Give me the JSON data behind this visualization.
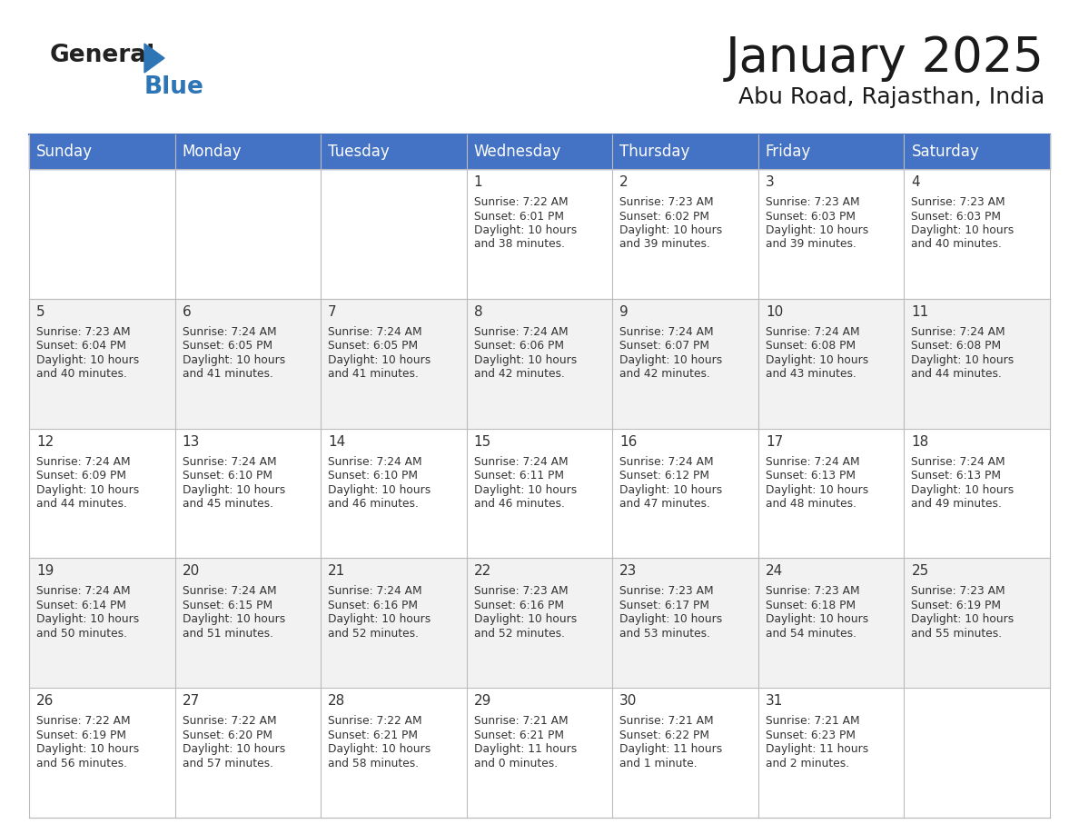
{
  "title": "January 2025",
  "subtitle": "Abu Road, Rajasthan, India",
  "header_color": "#4472C4",
  "header_text_color": "#FFFFFF",
  "day_names": [
    "Sunday",
    "Monday",
    "Tuesday",
    "Wednesday",
    "Thursday",
    "Friday",
    "Saturday"
  ],
  "bg_color": "#FFFFFF",
  "alt_row_color": "#F2F2F2",
  "cell_text_color": "#333333",
  "grid_color": "#BBBBBB",
  "title_fontsize": 38,
  "subtitle_fontsize": 18,
  "header_fontsize": 12,
  "cell_num_fontsize": 11,
  "cell_text_fontsize": 8.8,
  "weeks": [
    {
      "days": [
        {
          "num": null,
          "sunrise": null,
          "sunset": null,
          "daylight": null
        },
        {
          "num": null,
          "sunrise": null,
          "sunset": null,
          "daylight": null
        },
        {
          "num": null,
          "sunrise": null,
          "sunset": null,
          "daylight": null
        },
        {
          "num": "1",
          "sunrise": "7:22 AM",
          "sunset": "6:01 PM",
          "daylight": "10 hours and 38 minutes."
        },
        {
          "num": "2",
          "sunrise": "7:23 AM",
          "sunset": "6:02 PM",
          "daylight": "10 hours and 39 minutes."
        },
        {
          "num": "3",
          "sunrise": "7:23 AM",
          "sunset": "6:03 PM",
          "daylight": "10 hours and 39 minutes."
        },
        {
          "num": "4",
          "sunrise": "7:23 AM",
          "sunset": "6:03 PM",
          "daylight": "10 hours and 40 minutes."
        }
      ]
    },
    {
      "days": [
        {
          "num": "5",
          "sunrise": "7:23 AM",
          "sunset": "6:04 PM",
          "daylight": "10 hours and 40 minutes."
        },
        {
          "num": "6",
          "sunrise": "7:24 AM",
          "sunset": "6:05 PM",
          "daylight": "10 hours and 41 minutes."
        },
        {
          "num": "7",
          "sunrise": "7:24 AM",
          "sunset": "6:05 PM",
          "daylight": "10 hours and 41 minutes."
        },
        {
          "num": "8",
          "sunrise": "7:24 AM",
          "sunset": "6:06 PM",
          "daylight": "10 hours and 42 minutes."
        },
        {
          "num": "9",
          "sunrise": "7:24 AM",
          "sunset": "6:07 PM",
          "daylight": "10 hours and 42 minutes."
        },
        {
          "num": "10",
          "sunrise": "7:24 AM",
          "sunset": "6:08 PM",
          "daylight": "10 hours and 43 minutes."
        },
        {
          "num": "11",
          "sunrise": "7:24 AM",
          "sunset": "6:08 PM",
          "daylight": "10 hours and 44 minutes."
        }
      ]
    },
    {
      "days": [
        {
          "num": "12",
          "sunrise": "7:24 AM",
          "sunset": "6:09 PM",
          "daylight": "10 hours and 44 minutes."
        },
        {
          "num": "13",
          "sunrise": "7:24 AM",
          "sunset": "6:10 PM",
          "daylight": "10 hours and 45 minutes."
        },
        {
          "num": "14",
          "sunrise": "7:24 AM",
          "sunset": "6:10 PM",
          "daylight": "10 hours and 46 minutes."
        },
        {
          "num": "15",
          "sunrise": "7:24 AM",
          "sunset": "6:11 PM",
          "daylight": "10 hours and 46 minutes."
        },
        {
          "num": "16",
          "sunrise": "7:24 AM",
          "sunset": "6:12 PM",
          "daylight": "10 hours and 47 minutes."
        },
        {
          "num": "17",
          "sunrise": "7:24 AM",
          "sunset": "6:13 PM",
          "daylight": "10 hours and 48 minutes."
        },
        {
          "num": "18",
          "sunrise": "7:24 AM",
          "sunset": "6:13 PM",
          "daylight": "10 hours and 49 minutes."
        }
      ]
    },
    {
      "days": [
        {
          "num": "19",
          "sunrise": "7:24 AM",
          "sunset": "6:14 PM",
          "daylight": "10 hours and 50 minutes."
        },
        {
          "num": "20",
          "sunrise": "7:24 AM",
          "sunset": "6:15 PM",
          "daylight": "10 hours and 51 minutes."
        },
        {
          "num": "21",
          "sunrise": "7:24 AM",
          "sunset": "6:16 PM",
          "daylight": "10 hours and 52 minutes."
        },
        {
          "num": "22",
          "sunrise": "7:23 AM",
          "sunset": "6:16 PM",
          "daylight": "10 hours and 52 minutes."
        },
        {
          "num": "23",
          "sunrise": "7:23 AM",
          "sunset": "6:17 PM",
          "daylight": "10 hours and 53 minutes."
        },
        {
          "num": "24",
          "sunrise": "7:23 AM",
          "sunset": "6:18 PM",
          "daylight": "10 hours and 54 minutes."
        },
        {
          "num": "25",
          "sunrise": "7:23 AM",
          "sunset": "6:19 PM",
          "daylight": "10 hours and 55 minutes."
        }
      ]
    },
    {
      "days": [
        {
          "num": "26",
          "sunrise": "7:22 AM",
          "sunset": "6:19 PM",
          "daylight": "10 hours and 56 minutes."
        },
        {
          "num": "27",
          "sunrise": "7:22 AM",
          "sunset": "6:20 PM",
          "daylight": "10 hours and 57 minutes."
        },
        {
          "num": "28",
          "sunrise": "7:22 AM",
          "sunset": "6:21 PM",
          "daylight": "10 hours and 58 minutes."
        },
        {
          "num": "29",
          "sunrise": "7:21 AM",
          "sunset": "6:21 PM",
          "daylight": "11 hours and 0 minutes."
        },
        {
          "num": "30",
          "sunrise": "7:21 AM",
          "sunset": "6:22 PM",
          "daylight": "11 hours and 1 minute."
        },
        {
          "num": "31",
          "sunrise": "7:21 AM",
          "sunset": "6:23 PM",
          "daylight": "11 hours and 2 minutes."
        },
        {
          "num": null,
          "sunrise": null,
          "sunset": null,
          "daylight": null
        }
      ]
    }
  ]
}
